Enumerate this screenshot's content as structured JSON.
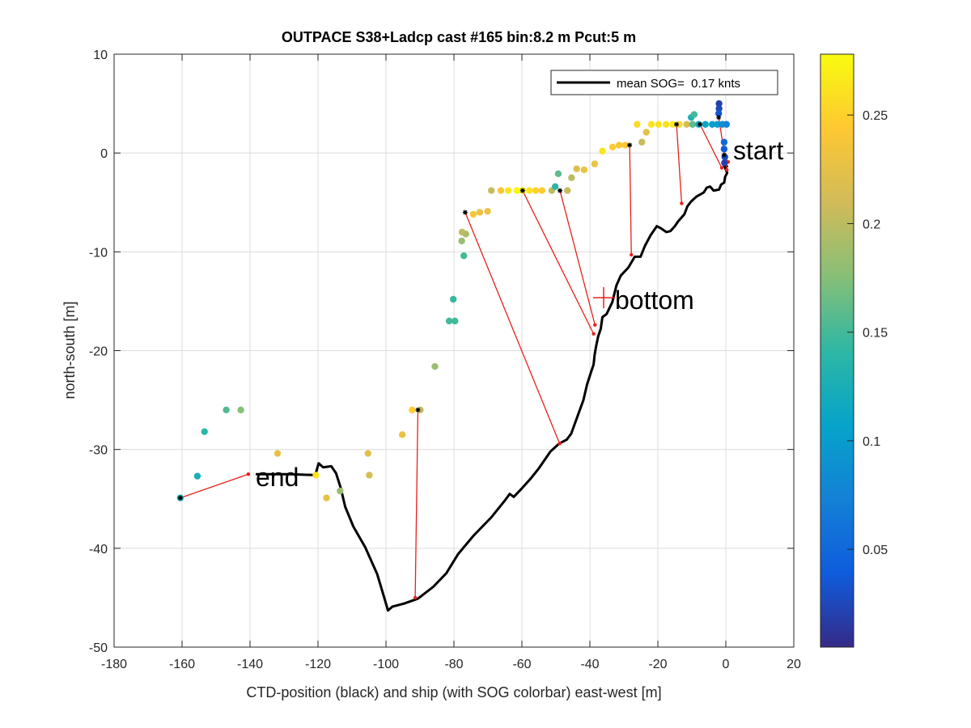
{
  "chart_data": {
    "type": "scatter",
    "title": "OUTPACE S38+Ladcp cast #165 bin:8.2 m  Pcut:5 m",
    "xlabel": "CTD-position (black) and ship (with SOG colorbar) east-west [m]",
    "ylabel": "north-south [m]",
    "xlim": [
      -180,
      20
    ],
    "ylim": [
      -50,
      10
    ],
    "xticks": [
      "-180",
      "-160",
      "-140",
      "-120",
      "-100",
      "-80",
      "-60",
      "-40",
      "-20",
      "0",
      "20"
    ],
    "yticks": [
      "-50",
      "-40",
      "-30",
      "-20",
      "-10",
      "0",
      "10"
    ],
    "grid": true,
    "legend": {
      "position": "top-right",
      "entry": "mean SOG=  0.17 knts"
    },
    "colorbar": {
      "range": [
        0.005,
        0.278
      ],
      "ticks": [
        "0.05",
        "0.1",
        "0.15",
        "0.2",
        "0.25"
      ],
      "tick_values": [
        0.05,
        0.1,
        0.15,
        0.2,
        0.25
      ]
    },
    "annotations": {
      "start": {
        "text": "start",
        "x": 0.6,
        "y": 0.2
      },
      "bottom": {
        "text": "bottom",
        "x": -36,
        "y": -14.6
      },
      "end": {
        "text": "end",
        "x": -141.4,
        "y": -32.8
      }
    },
    "ctd_track": [
      [
        0.6,
        -1.4
      ],
      [
        -0.6,
        -1.2
      ],
      [
        0.4,
        -2.0
      ],
      [
        -0.2,
        -2.4
      ],
      [
        -0.5,
        -3.0
      ],
      [
        -1.4,
        -3.2
      ],
      [
        -2.0,
        -3.7
      ],
      [
        -3.6,
        -3.8
      ],
      [
        -4.6,
        -3.4
      ],
      [
        -5.6,
        -3.5
      ],
      [
        -6.5,
        -4.0
      ],
      [
        -8.6,
        -4.4
      ],
      [
        -10.2,
        -4.9
      ],
      [
        -11.3,
        -5.4
      ],
      [
        -12.2,
        -6.2
      ],
      [
        -14.0,
        -6.9
      ],
      [
        -15.0,
        -7.4
      ],
      [
        -16.3,
        -7.9
      ],
      [
        -17.5,
        -8.0
      ],
      [
        -19.2,
        -7.6
      ],
      [
        -20.3,
        -7.4
      ],
      [
        -22.1,
        -8.3
      ],
      [
        -23.8,
        -9.4
      ],
      [
        -25.1,
        -10.5
      ],
      [
        -26.8,
        -10.5
      ],
      [
        -28.7,
        -11.6
      ],
      [
        -30.9,
        -12.4
      ],
      [
        -32.2,
        -13.4
      ],
      [
        -33.4,
        -15.1
      ],
      [
        -35.1,
        -16.3
      ],
      [
        -36.3,
        -16.6
      ],
      [
        -36.8,
        -17.8
      ],
      [
        -37.6,
        -18.6
      ],
      [
        -38.2,
        -19.6
      ],
      [
        -38.6,
        -20.4
      ],
      [
        -38.9,
        -21.4
      ],
      [
        -39.6,
        -22.1
      ],
      [
        -40.8,
        -23.4
      ],
      [
        -41.9,
        -25.0
      ],
      [
        -43.6,
        -26.6
      ],
      [
        -45.5,
        -28.4
      ],
      [
        -46.8,
        -29.0
      ],
      [
        -49.0,
        -29.4
      ],
      [
        -51.6,
        -30.2
      ],
      [
        -55.0,
        -31.9
      ],
      [
        -57.3,
        -32.9
      ],
      [
        -59.9,
        -33.9
      ],
      [
        -62.4,
        -34.8
      ],
      [
        -63.6,
        -34.5
      ],
      [
        -65.1,
        -35.2
      ],
      [
        -69.1,
        -36.9
      ],
      [
        -74.2,
        -38.7
      ],
      [
        -78.8,
        -40.6
      ],
      [
        -82.2,
        -42.5
      ],
      [
        -86.1,
        -43.9
      ],
      [
        -90.6,
        -45.1
      ],
      [
        -94.7,
        -45.6
      ],
      [
        -98.1,
        -45.9
      ],
      [
        -99.4,
        -46.3
      ],
      [
        -100.6,
        -44.9
      ],
      [
        -102.6,
        -42.6
      ],
      [
        -106.1,
        -39.9
      ],
      [
        -109.6,
        -37.8
      ],
      [
        -112.0,
        -35.8
      ],
      [
        -113.3,
        -33.9
      ],
      [
        -114.7,
        -32.4
      ],
      [
        -116.1,
        -31.7
      ],
      [
        -118.5,
        -31.8
      ],
      [
        -119.8,
        -31.4
      ],
      [
        -120.8,
        -32.6
      ],
      [
        -127.9,
        -32.5
      ],
      [
        -134.6,
        -32.5
      ],
      [
        -138.3,
        -32.5
      ]
    ],
    "ship_points": [
      [
        -160.5,
        -34.9,
        0.125
      ],
      [
        -155.5,
        -32.7,
        0.125
      ],
      [
        -153.4,
        -28.2,
        0.14
      ],
      [
        -147.0,
        -26.0,
        0.155
      ],
      [
        -142.7,
        -26.0,
        0.175
      ],
      [
        -131.9,
        -30.4,
        0.225
      ],
      [
        -120.6,
        -32.6,
        0.262
      ],
      [
        -117.5,
        -34.9,
        0.226
      ],
      [
        -113.5,
        -34.2,
        0.185
      ],
      [
        -104.9,
        -32.6,
        0.215
      ],
      [
        -105.3,
        -30.4,
        0.222
      ],
      [
        -92.3,
        -26.0,
        0.245
      ],
      [
        -89.9,
        -26.0,
        0.2
      ],
      [
        -95.2,
        -28.5,
        0.228
      ],
      [
        -85.6,
        -21.6,
        0.185
      ],
      [
        -81.4,
        -17.0,
        0.15
      ],
      [
        -79.7,
        -17.0,
        0.148
      ],
      [
        -80.2,
        -14.8,
        0.145
      ],
      [
        -77.1,
        -10.4,
        0.15
      ],
      [
        -77.7,
        -8.9,
        0.185
      ],
      [
        -76.5,
        -8.2,
        0.19
      ],
      [
        -77.6,
        -8.0,
        0.2
      ],
      [
        -74.3,
        -6.2,
        0.238
      ],
      [
        -72.4,
        -6.0,
        0.23
      ],
      [
        -70.1,
        -5.9,
        0.23
      ],
      [
        -69.0,
        -3.8,
        0.205
      ],
      [
        -66.2,
        -3.8,
        0.24
      ],
      [
        -64.0,
        -3.8,
        0.262
      ],
      [
        -61.5,
        -3.8,
        0.274
      ],
      [
        -59.8,
        -3.8,
        0.27
      ],
      [
        -57.8,
        -3.8,
        0.262
      ],
      [
        -55.9,
        -3.8,
        0.25
      ],
      [
        -54.1,
        -3.8,
        0.245
      ],
      [
        -51.2,
        -3.8,
        0.2
      ],
      [
        -50.2,
        -3.4,
        0.14
      ],
      [
        -49.3,
        -2.1,
        0.16
      ],
      [
        -46.6,
        -3.8,
        0.205
      ],
      [
        -45.4,
        -2.5,
        0.2
      ],
      [
        -43.9,
        -1.6,
        0.22
      ],
      [
        -41.7,
        -1.7,
        0.23
      ],
      [
        -38.6,
        -1.1,
        0.23
      ],
      [
        -36.3,
        0.2,
        0.262
      ],
      [
        -33.3,
        0.6,
        0.245
      ],
      [
        -31.4,
        0.8,
        0.24
      ],
      [
        -29.6,
        0.8,
        0.242
      ],
      [
        -26.1,
        2.9,
        0.255
      ],
      [
        -24.7,
        1.1,
        0.205
      ],
      [
        -23.4,
        2.1,
        0.225
      ],
      [
        -21.9,
        2.9,
        0.262
      ],
      [
        -19.8,
        2.9,
        0.262
      ],
      [
        -17.6,
        2.9,
        0.26
      ],
      [
        -15.6,
        2.9,
        0.265
      ],
      [
        -13.7,
        2.9,
        0.255
      ],
      [
        -11.5,
        2.9,
        0.215
      ],
      [
        -10.2,
        3.6,
        0.13
      ],
      [
        -9.3,
        3.9,
        0.15
      ],
      [
        -9.8,
        2.9,
        0.16
      ],
      [
        -8.0,
        2.9,
        0.12
      ],
      [
        -6.0,
        2.9,
        0.11
      ],
      [
        -4.0,
        2.9,
        0.105
      ],
      [
        -2.5,
        2.9,
        0.1
      ],
      [
        -1.0,
        2.9,
        0.085
      ],
      [
        0.2,
        2.9,
        0.075
      ],
      [
        -2.0,
        5.0,
        0.02
      ],
      [
        -2.0,
        4.5,
        0.025
      ],
      [
        -2.1,
        4.0,
        0.035
      ],
      [
        -0.5,
        1.1,
        0.05
      ],
      [
        -0.5,
        0.4,
        0.04
      ],
      [
        -0.3,
        -0.4,
        0.03
      ],
      [
        -0.4,
        -1.0,
        0.02
      ]
    ],
    "ship_markers": [
      [
        -160.5,
        -34.9
      ],
      [
        -90.6,
        -26.0
      ],
      [
        -76.7,
        -6.0
      ],
      [
        -59.8,
        -3.8
      ],
      [
        -48.8,
        -3.8
      ],
      [
        -28.3,
        0.8
      ],
      [
        -14.5,
        2.9
      ],
      [
        -7.6,
        2.9
      ],
      [
        -2.1,
        3.6
      ],
      [
        -0.5,
        -0.2
      ]
    ],
    "connector_lines": [
      [
        [
          -160.5,
          -34.9
        ],
        [
          -140.5,
          -32.5
        ]
      ],
      [
        [
          -90.6,
          -26.0
        ],
        [
          -91.4,
          -45.0
        ]
      ],
      [
        [
          -76.7,
          -6.0
        ],
        [
          -48.9,
          -29.4
        ]
      ],
      [
        [
          -59.8,
          -3.8
        ],
        [
          -38.9,
          -18.3
        ]
      ],
      [
        [
          -48.8,
          -3.8
        ],
        [
          -38.5,
          -17.4
        ]
      ],
      [
        [
          -28.3,
          0.8
        ],
        [
          -27.8,
          -10.3
        ]
      ],
      [
        [
          -14.5,
          2.9
        ],
        [
          -13.0,
          -5.1
        ]
      ],
      [
        [
          -7.6,
          2.9
        ],
        [
          -1.2,
          -1.5
        ]
      ],
      [
        [
          -2.1,
          3.6
        ],
        [
          0.3,
          -1.7
        ]
      ],
      [
        [
          -0.5,
          -0.2
        ],
        [
          0.7,
          -0.9
        ]
      ]
    ]
  }
}
